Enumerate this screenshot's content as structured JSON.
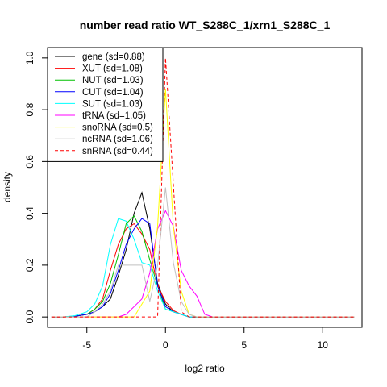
{
  "chart_data": {
    "type": "line",
    "title": "number read ratio WT_S288C_1/xrn1_S288C_1",
    "xlabel": "log2 ratio",
    "ylabel": "density",
    "xlim": [
      -7.5,
      12.5
    ],
    "ylim": [
      -0.04,
      1.04
    ],
    "xticks": [
      -5,
      0,
      5,
      10
    ],
    "yticks": [
      0.0,
      0.2,
      0.4,
      0.6,
      0.8,
      1.0
    ],
    "xtick_labels": [
      "-5",
      "0",
      "5",
      "10"
    ],
    "ytick_labels": [
      "0.0",
      "0.2",
      "0.4",
      "0.6",
      "0.8",
      "1.0"
    ],
    "grid": false,
    "legend_position": "top-left",
    "series": [
      {
        "name": "gene (sd=0.88)",
        "color": "#000000",
        "dash": false,
        "x": [
          -7.25,
          -6.5,
          -5.75,
          -5,
          -4.5,
          -4,
          -3.5,
          -3,
          -2.5,
          -2,
          -1.5,
          -1,
          -0.5,
          0,
          0.5,
          1,
          1.5,
          2,
          12
        ],
        "y": [
          0,
          0,
          0.003,
          0.01,
          0.02,
          0.04,
          0.07,
          0.16,
          0.26,
          0.4,
          0.48,
          0.34,
          0.13,
          0.05,
          0.02,
          0.01,
          0,
          0,
          0
        ]
      },
      {
        "name": "XUT (sd=1.08)",
        "color": "#ff0000",
        "dash": false,
        "x": [
          -7.25,
          -6.5,
          -5.75,
          -5,
          -4.5,
          -4,
          -3.5,
          -3,
          -2.5,
          -2,
          -1.5,
          -1,
          -0.5,
          0,
          0.5,
          1,
          1.5,
          2,
          12
        ],
        "y": [
          0,
          0,
          0.003,
          0.01,
          0.03,
          0.07,
          0.18,
          0.28,
          0.34,
          0.36,
          0.32,
          0.26,
          0.12,
          0.06,
          0.025,
          0.01,
          0,
          0,
          0
        ]
      },
      {
        "name": "NUT (sd=1.03)",
        "color": "#00c000",
        "dash": false,
        "x": [
          -7.25,
          -6.5,
          -5.75,
          -5,
          -4.5,
          -4,
          -3.5,
          -3,
          -2.5,
          -2,
          -1.5,
          -1,
          -0.5,
          0,
          0.5,
          1,
          1.5,
          2,
          12
        ],
        "y": [
          0,
          0,
          0.003,
          0.01,
          0.03,
          0.06,
          0.13,
          0.24,
          0.36,
          0.39,
          0.33,
          0.22,
          0.12,
          0.03,
          0.02,
          0.01,
          0,
          0,
          0
        ]
      },
      {
        "name": "CUT (sd=1.04)",
        "color": "#0000ff",
        "dash": false,
        "x": [
          -7.25,
          -6.5,
          -5.75,
          -5,
          -4.5,
          -4,
          -3.5,
          -3,
          -2.5,
          -2,
          -1.5,
          -1,
          -0.5,
          0,
          0.5,
          1,
          1.5,
          2,
          12
        ],
        "y": [
          0,
          0,
          0.003,
          0.01,
          0.02,
          0.04,
          0.09,
          0.18,
          0.28,
          0.34,
          0.38,
          0.36,
          0.12,
          0.04,
          0.02,
          0.01,
          0,
          0,
          0
        ]
      },
      {
        "name": "SUT (sd=1.03)",
        "color": "#00ffff",
        "dash": false,
        "x": [
          -7.25,
          -6.5,
          -5.75,
          -5,
          -4.5,
          -4,
          -3.5,
          -3,
          -2.5,
          -2,
          -1.5,
          -1,
          -0.5,
          0,
          0.5,
          1,
          1.5,
          2,
          12
        ],
        "y": [
          0,
          0,
          0.005,
          0.02,
          0.05,
          0.12,
          0.28,
          0.38,
          0.37,
          0.3,
          0.21,
          0.2,
          0.1,
          0.03,
          0.02,
          0.01,
          0,
          0,
          0
        ]
      },
      {
        "name": "tRNA (sd=1.05)",
        "color": "#ff00ff",
        "dash": false,
        "x": [
          -7.25,
          -3,
          -2.5,
          -2,
          -1.5,
          -1,
          -0.5,
          0,
          0.5,
          1,
          1.5,
          2,
          2.5,
          3,
          12
        ],
        "y": [
          0,
          0,
          0.01,
          0.04,
          0.07,
          0.17,
          0.34,
          0.41,
          0.35,
          0.18,
          0.12,
          0.08,
          0.01,
          0,
          0
        ]
      },
      {
        "name": "snoRNA (sd=0.5)",
        "color": "#ffff00",
        "dash": false,
        "x": [
          -7.25,
          -2,
          -1.5,
          -1,
          -0.5,
          0,
          0.5,
          1,
          1.5,
          2,
          12
        ],
        "y": [
          0,
          0,
          0.05,
          0.1,
          0.35,
          0.88,
          0.35,
          0.1,
          0.01,
          0,
          0
        ]
      },
      {
        "name": "ncRNA (sd=1.06)",
        "color": "#c0c0c0",
        "dash": false,
        "x": [
          -7.25,
          -5,
          -4.5,
          -4,
          -3.5,
          -3,
          -2.5,
          -2,
          -1.5,
          -1,
          -0.5,
          0,
          0.5,
          1,
          1.5,
          2,
          12
        ],
        "y": [
          0,
          0,
          0.02,
          0.05,
          0.1,
          0.2,
          0.2,
          0.2,
          0.2,
          0.06,
          0.2,
          0.5,
          0.21,
          0.06,
          0.01,
          0,
          0
        ]
      },
      {
        "name": "snRNA (sd=0.44)",
        "color": "#ff0000",
        "dash": true,
        "x": [
          -7.25,
          -0.5,
          0,
          1,
          1.5,
          12
        ],
        "y": [
          0,
          0,
          1.0,
          0.02,
          0,
          0
        ]
      }
    ]
  }
}
